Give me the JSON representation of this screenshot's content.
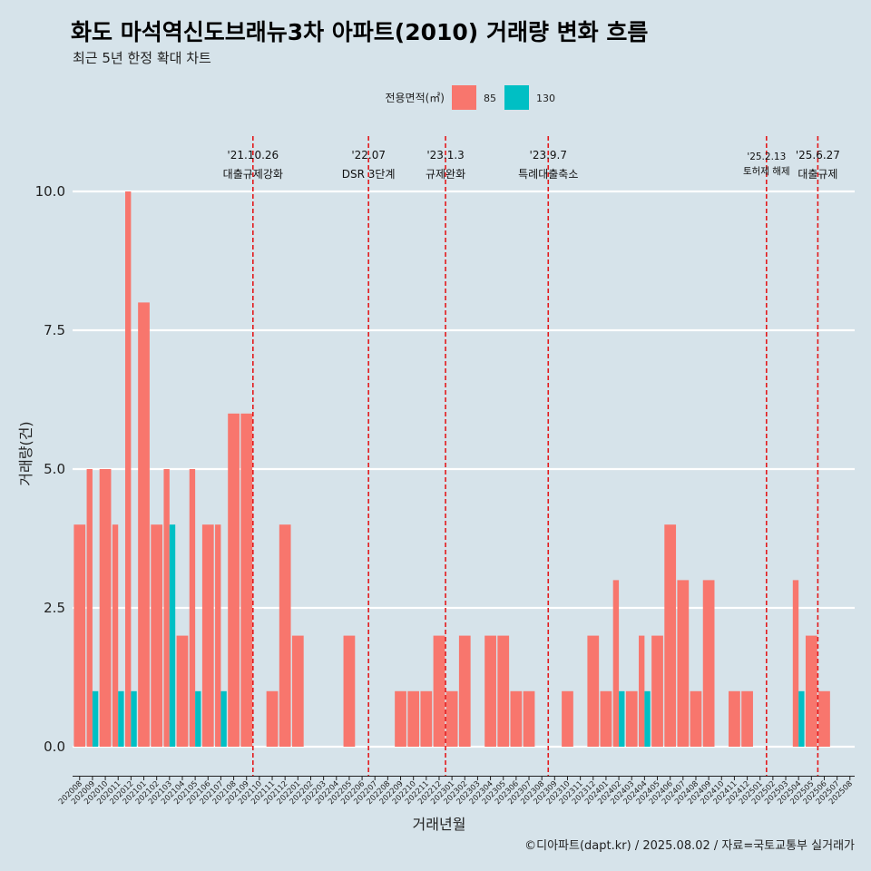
{
  "title": "화도 마석역신도브래뉴3차 아파트(2010) 거래량 변화 흐름",
  "subtitle": "최근 5년 한정 확대 차트",
  "caption": "©디아파트(dapt.kr) / 2025.08.02 / 자료=국토교통부 실거래가",
  "legend": {
    "title": "전용면적(㎡)",
    "items": [
      {
        "label": "85",
        "color": "#f8766d"
      },
      {
        "label": "130",
        "color": "#00bfc4"
      }
    ]
  },
  "chart_data": {
    "type": "bar",
    "xlabel": "거래년월",
    "ylabel": "거래량(건)",
    "ylim": [
      0,
      10
    ],
    "yticks": [
      "0.0",
      "2.5",
      "5.0",
      "7.5",
      "10.0"
    ],
    "grid": "horizontal",
    "legend_position": "top",
    "categories": [
      "202008",
      "202009",
      "202010",
      "202011",
      "202012",
      "202101",
      "202102",
      "202103",
      "202104",
      "202105",
      "202106",
      "202107",
      "202108",
      "202109",
      "202110",
      "202111",
      "202112",
      "202201",
      "202202",
      "202203",
      "202204",
      "202205",
      "202206",
      "202207",
      "202208",
      "202209",
      "202210",
      "202211",
      "202212",
      "202301",
      "202302",
      "202303",
      "202304",
      "202305",
      "202306",
      "202307",
      "202308",
      "202309",
      "202310",
      "202311",
      "202312",
      "202401",
      "202402",
      "202403",
      "202404",
      "202405",
      "202406",
      "202407",
      "202408",
      "202409",
      "202410",
      "202411",
      "202412",
      "202501",
      "202502",
      "202503",
      "202504",
      "202505",
      "202506",
      "202507",
      "202508"
    ],
    "series": [
      {
        "name": "85",
        "color": "#f8766d",
        "values": [
          4,
          5,
          5,
          4,
          10,
          8,
          4,
          5,
          2,
          5,
          4,
          4,
          6,
          6,
          0,
          1,
          4,
          2,
          0,
          0,
          0,
          2,
          0,
          0,
          0,
          1,
          1,
          1,
          2,
          1,
          2,
          0,
          2,
          2,
          1,
          1,
          0,
          0,
          1,
          0,
          2,
          1,
          3,
          1,
          2,
          2,
          4,
          3,
          1,
          3,
          0,
          1,
          1,
          0,
          0,
          0,
          3,
          2,
          1,
          0,
          0
        ]
      },
      {
        "name": "130",
        "color": "#00bfc4",
        "values": [
          0,
          1,
          0,
          1,
          1,
          0,
          0,
          4,
          0,
          1,
          0,
          1,
          0,
          0,
          0,
          0,
          0,
          0,
          0,
          0,
          0,
          0,
          0,
          0,
          0,
          0,
          0,
          0,
          0,
          0,
          0,
          0,
          0,
          0,
          0,
          0,
          0,
          0,
          0,
          0,
          0,
          0,
          1,
          0,
          1,
          0,
          0,
          0,
          0,
          0,
          0,
          0,
          0,
          0,
          0,
          0,
          1,
          0,
          0,
          0,
          0
        ]
      }
    ],
    "annotations": [
      {
        "x": "202110",
        "date": "'21.10.26",
        "label": "대출규제강화"
      },
      {
        "x": "202207",
        "date": "'22.07",
        "label": "DSR 3단계"
      },
      {
        "x": "202301",
        "date": "'23.1.3",
        "label": "규제완화"
      },
      {
        "x": "202309",
        "date": "'23.9.7",
        "label": "특례대출축소"
      },
      {
        "x": "202502",
        "date": "'25.2.13",
        "label": "토허제 해제"
      },
      {
        "x": "202506",
        "date": "'25.6.27",
        "label": "대출규제"
      }
    ],
    "annotation_color": "#e31a1c"
  }
}
